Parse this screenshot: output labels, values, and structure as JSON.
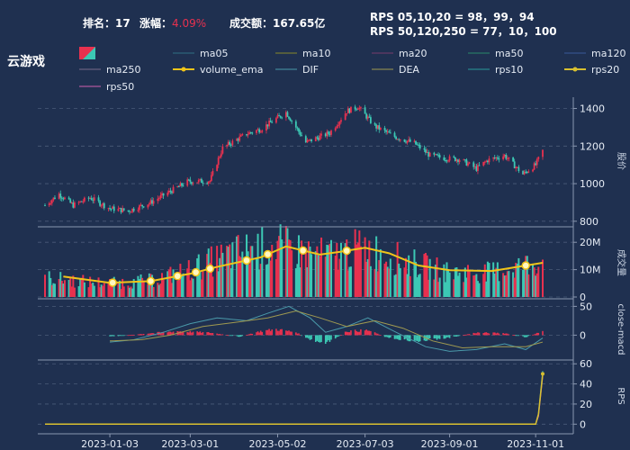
{
  "header": {
    "rank_label": "排名：",
    "rank_value": "17",
    "change_label": "涨幅：",
    "change_value": "4.09%",
    "turnover_label": "成交额：",
    "turnover_value": "167.65亿",
    "rps_short": "RPS 05,10,20 = 98，99，94",
    "rps_long": "RPS 50,120,250 = 77，10，100"
  },
  "title": "云游戏",
  "legend": [
    {
      "label": "",
      "color": "#e8314f",
      "type": "candle"
    },
    {
      "label": "ma05",
      "color": "#2f6f83",
      "type": "line"
    },
    {
      "label": "ma10",
      "color": "#8a8a2a",
      "type": "line"
    },
    {
      "label": "ma20",
      "color": "#7a3d6d",
      "type": "line"
    },
    {
      "label": "ma50",
      "color": "#2a8a6a",
      "type": "line"
    },
    {
      "label": "ma120",
      "color": "#3a5a9a",
      "type": "line"
    },
    {
      "label": "ma250",
      "color": "#7a6a8a",
      "type": "line"
    },
    {
      "label": "volume_ema",
      "color": "#f0c419",
      "type": "dotline"
    },
    {
      "label": "DIF",
      "color": "#4a9aaa",
      "type": "line"
    },
    {
      "label": "DEA",
      "color": "#a09a50",
      "type": "line"
    },
    {
      "label": "rps10",
      "color": "#2a9a9a",
      "type": "line"
    },
    {
      "label": "rps20",
      "color": "#d8c030",
      "type": "dotline"
    },
    {
      "label": "rps50",
      "color": "#d060b0",
      "type": "line"
    }
  ],
  "colors": {
    "up": "#e8314f",
    "down": "#3cc8b4",
    "ema": "#f0c419",
    "bg": "#1f3050",
    "grid": "#4a5a78"
  },
  "chart_data": [
    {
      "type": "candlestick",
      "ylabel": "股价",
      "ylim": [
        780,
        1460
      ],
      "yticks": [
        800,
        1000,
        1200,
        1400
      ],
      "x_dates": [
        "2022-11-18",
        "2023-11-06"
      ],
      "xticks": [
        "2023-01-03",
        "2023-03-01",
        "2023-05-02",
        "2023-07-03",
        "2023-09-01",
        "2023-11-01"
      ],
      "close_path": [
        [
          "2022-11-18",
          885
        ],
        [
          "2022-11-28",
          945
        ],
        [
          "2022-12-08",
          885
        ],
        [
          "2022-12-20",
          925
        ],
        [
          "2023-01-03",
          868
        ],
        [
          "2023-01-16",
          855
        ],
        [
          "2023-02-01",
          900
        ],
        [
          "2023-02-14",
          955
        ],
        [
          "2023-02-27",
          1010
        ],
        [
          "2023-03-15",
          1015
        ],
        [
          "2023-03-24",
          1190
        ],
        [
          "2023-04-10",
          1265
        ],
        [
          "2023-04-20",
          1290
        ],
        [
          "2023-05-08",
          1380
        ],
        [
          "2023-05-22",
          1220
        ],
        [
          "2023-06-08",
          1270
        ],
        [
          "2023-06-20",
          1385
        ],
        [
          "2023-06-28",
          1410
        ],
        [
          "2023-07-10",
          1305
        ],
        [
          "2023-07-24",
          1250
        ],
        [
          "2023-08-07",
          1215
        ],
        [
          "2023-08-18",
          1150
        ],
        [
          "2023-08-29",
          1135
        ],
        [
          "2023-09-08",
          1130
        ],
        [
          "2023-09-20",
          1080
        ],
        [
          "2023-09-28",
          1125
        ],
        [
          "2023-10-10",
          1150
        ],
        [
          "2023-10-23",
          1050
        ],
        [
          "2023-11-01",
          1100
        ],
        [
          "2023-11-06",
          1175
        ]
      ]
    },
    {
      "type": "bar",
      "ylabel": "成交量",
      "ylim": [
        0,
        25
      ],
      "yticks": [
        "0",
        "10M",
        "20M"
      ],
      "volume_path": [
        [
          "2022-11-18",
          7
        ],
        [
          "2022-12-08",
          6
        ],
        [
          "2023-01-03",
          5
        ],
        [
          "2023-02-01",
          6
        ],
        [
          "2023-03-01",
          10
        ],
        [
          "2023-04-01",
          16
        ],
        [
          "2023-05-02",
          19
        ],
        [
          "2023-05-15",
          17
        ],
        [
          "2023-06-05",
          15
        ],
        [
          "2023-07-03",
          18
        ],
        [
          "2023-08-01",
          13
        ],
        [
          "2023-09-01",
          9
        ],
        [
          "2023-10-01",
          9
        ],
        [
          "2023-11-06",
          13
        ]
      ],
      "ema_path": [
        [
          "2022-12-01",
          7.5
        ],
        [
          "2023-01-03",
          5.2
        ],
        [
          "2023-02-01",
          5.8
        ],
        [
          "2023-03-01",
          8.5
        ],
        [
          "2023-03-20",
          11.0
        ],
        [
          "2023-04-20",
          14.5
        ],
        [
          "2023-05-08",
          18.5
        ],
        [
          "2023-06-01",
          15.5
        ],
        [
          "2023-06-15",
          16.5
        ],
        [
          "2023-07-03",
          18.0
        ],
        [
          "2023-07-20",
          16.0
        ],
        [
          "2023-08-10",
          11.5
        ],
        [
          "2023-09-01",
          9.8
        ],
        [
          "2023-10-01",
          9.5
        ],
        [
          "2023-11-06",
          12.5
        ]
      ]
    },
    {
      "type": "macd",
      "ylabel": "close-macd",
      "ylim": [
        -40,
        60
      ],
      "yticks": [
        0,
        50
      ],
      "dif_path": [
        [
          "2023-01-03",
          -12
        ],
        [
          "2023-01-20",
          -8
        ],
        [
          "2023-02-10",
          5
        ],
        [
          "2023-03-01",
          20
        ],
        [
          "2023-03-20",
          30
        ],
        [
          "2023-04-10",
          25
        ],
        [
          "2023-04-25",
          38
        ],
        [
          "2023-05-10",
          50
        ],
        [
          "2023-05-25",
          30
        ],
        [
          "2023-06-05",
          5
        ],
        [
          "2023-06-20",
          15
        ],
        [
          "2023-07-05",
          30
        ],
        [
          "2023-07-25",
          5
        ],
        [
          "2023-08-15",
          -20
        ],
        [
          "2023-09-01",
          -28
        ],
        [
          "2023-09-20",
          -25
        ],
        [
          "2023-10-10",
          -15
        ],
        [
          "2023-10-25",
          -25
        ],
        [
          "2023-11-06",
          -5
        ]
      ],
      "dea_path": [
        [
          "2023-01-03",
          -10
        ],
        [
          "2023-01-25",
          -8
        ],
        [
          "2023-02-15",
          0
        ],
        [
          "2023-03-10",
          15
        ],
        [
          "2023-04-01",
          22
        ],
        [
          "2023-04-25",
          30
        ],
        [
          "2023-05-15",
          42
        ],
        [
          "2023-06-01",
          30
        ],
        [
          "2023-06-20",
          15
        ],
        [
          "2023-07-10",
          25
        ],
        [
          "2023-07-30",
          12
        ],
        [
          "2023-08-20",
          -10
        ],
        [
          "2023-09-10",
          -22
        ],
        [
          "2023-10-01",
          -20
        ],
        [
          "2023-10-25",
          -20
        ],
        [
          "2023-11-06",
          -12
        ]
      ],
      "hist_path": [
        [
          "2023-01-03",
          -3
        ],
        [
          "2023-02-01",
          4
        ],
        [
          "2023-02-20",
          8
        ],
        [
          "2023-03-15",
          5
        ],
        [
          "2023-04-05",
          -3
        ],
        [
          "2023-04-20",
          8
        ],
        [
          "2023-05-01",
          12
        ],
        [
          "2023-05-15",
          6
        ],
        [
          "2023-05-25",
          -10
        ],
        [
          "2023-06-05",
          -18
        ],
        [
          "2023-06-20",
          8
        ],
        [
          "2023-07-05",
          10
        ],
        [
          "2023-07-20",
          -6
        ],
        [
          "2023-08-10",
          -12
        ],
        [
          "2023-09-01",
          -5
        ],
        [
          "2023-09-20",
          5
        ],
        [
          "2023-10-10",
          4
        ],
        [
          "2023-10-25",
          -4
        ],
        [
          "2023-11-06",
          8
        ]
      ]
    },
    {
      "type": "line",
      "ylabel": "RPS",
      "ylim": [
        -6,
        62
      ],
      "yticks": [
        0,
        20,
        40,
        60
      ],
      "rps10_path": [
        [
          "2022-11-18",
          0
        ],
        [
          "2023-11-01",
          0
        ],
        [
          "2023-11-03",
          10
        ],
        [
          "2023-11-06",
          53
        ]
      ],
      "rps20_path": [
        [
          "2022-11-18",
          0
        ],
        [
          "2023-11-01",
          0
        ],
        [
          "2023-11-03",
          10
        ],
        [
          "2023-11-06",
          50
        ]
      ],
      "rps50_path": [
        [
          "2022-11-18",
          0
        ],
        [
          "2023-11-01",
          0
        ],
        [
          "2023-11-03",
          8
        ],
        [
          "2023-11-06",
          48
        ]
      ]
    }
  ]
}
